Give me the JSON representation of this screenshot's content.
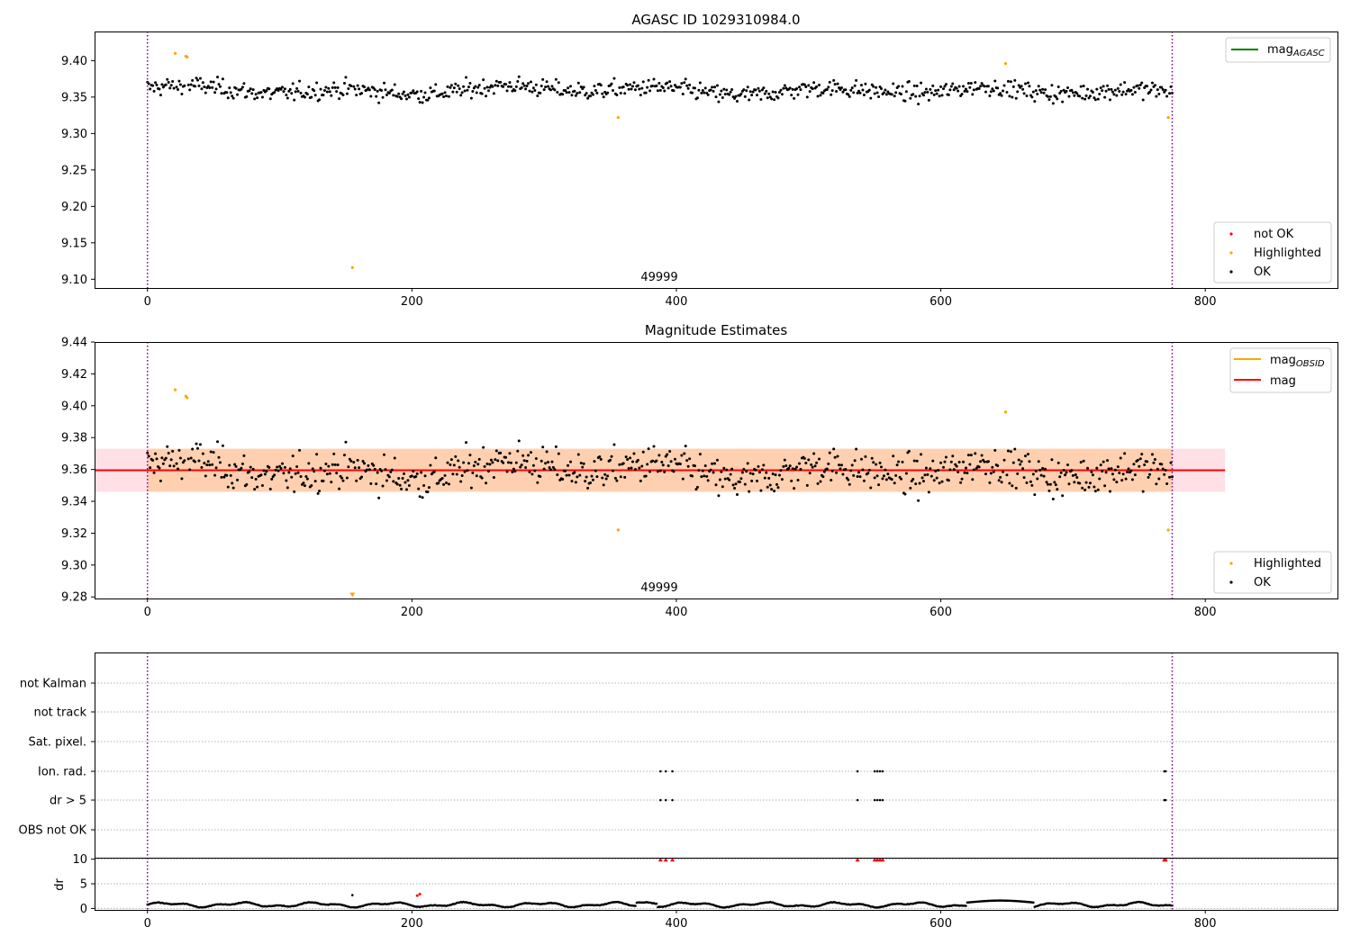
{
  "figure": {
    "panel1_title": "AGASC ID 1029310984.0",
    "panel2_title": "Magnitude Estimates",
    "obsid_label": "49999",
    "colors": {
      "ok": "#000000",
      "highlighted": "#ffa500",
      "not_ok": "#ff0000",
      "mag_line": "#ff0000",
      "mag_obsid": "#ffa500",
      "mag_agasc": "#008000",
      "band_inner": "#ffd0b0",
      "band_outer": "#ffe0e6",
      "obs_boundary": "#800080"
    }
  },
  "chart_data": [
    {
      "type": "scatter",
      "title": "AGASC ID 1029310984.0",
      "xlim": [
        -40,
        900
      ],
      "ylim": [
        9.088,
        9.44
      ],
      "xticks": [
        0,
        200,
        400,
        600,
        800
      ],
      "yticks": [
        9.1,
        9.15,
        9.2,
        9.25,
        9.3,
        9.35,
        9.4
      ],
      "ytick_labels": [
        "9.10",
        "9.15",
        "9.20",
        "9.25",
        "9.30",
        "9.35",
        "9.40"
      ],
      "observation_boundaries": [
        0,
        775
      ],
      "series": [
        {
          "name": "OK",
          "color": "#000000",
          "description": "~775 points scattered around 9.36 (range 9.325-9.395)"
        },
        {
          "name": "Highlighted",
          "color": "#ffa500",
          "x": [
            21,
            29,
            30,
            155,
            356,
            649,
            772
          ],
          "y": [
            9.41,
            9.406,
            9.405,
            9.116,
            9.322,
            9.396,
            9.322
          ]
        },
        {
          "name": "not OK",
          "color": "#ff0000",
          "x": [],
          "y": []
        }
      ],
      "lines": [
        {
          "name": "mag_AGASC",
          "color": "#008000"
        }
      ],
      "legend_lines": [
        {
          "label": "mag",
          "subscript": "AGASC",
          "color": "#008000"
        }
      ],
      "legend_points": [
        {
          "label": "not OK",
          "color": "#ff0000"
        },
        {
          "label": "Highlighted",
          "color": "#ffa500"
        },
        {
          "label": "OK",
          "color": "#000000"
        }
      ]
    },
    {
      "type": "scatter",
      "title": "Magnitude Estimates",
      "xlim": [
        -40,
        900
      ],
      "ylim": [
        9.279,
        9.44
      ],
      "xticks": [
        0,
        200,
        400,
        600,
        800
      ],
      "yticks": [
        9.28,
        9.3,
        9.32,
        9.34,
        9.36,
        9.38,
        9.4,
        9.42,
        9.44
      ],
      "ytick_labels": [
        "9.28",
        "9.30",
        "9.32",
        "9.34",
        "9.36",
        "9.38",
        "9.40",
        "9.42",
        "9.44"
      ],
      "observation_boundaries": [
        0,
        775
      ],
      "mag": 9.3595,
      "band_inner": [
        9.346,
        9.373
      ],
      "band_outer": [
        9.346,
        9.373
      ],
      "band_x": [
        -40,
        815
      ],
      "series": [
        {
          "name": "OK",
          "color": "#000000",
          "description": "~775 points scattered around 9.36 (range 9.325-9.395)"
        },
        {
          "name": "Highlighted",
          "color": "#ffa500",
          "x": [
            21,
            29,
            30,
            356,
            649,
            772
          ],
          "y": [
            9.41,
            9.406,
            9.405,
            9.322,
            9.396,
            9.322
          ]
        },
        {
          "name": "Highlighted (below axis)",
          "color": "#ffa500",
          "x": [
            155
          ],
          "y": [
            9.281
          ],
          "marker": "triangle-down"
        }
      ],
      "legend_lines": [
        {
          "label": "mag",
          "subscript": "OBSID",
          "color": "#ffa500"
        },
        {
          "label": "mag",
          "subscript": "",
          "color": "#ff0000"
        }
      ],
      "legend_points": [
        {
          "label": "Highlighted",
          "color": "#ffa500"
        },
        {
          "label": "OK",
          "color": "#000000"
        }
      ]
    },
    {
      "type": "scatter",
      "title": "",
      "xlim": [
        -40,
        900
      ],
      "categories": [
        "not Kalman",
        "not track",
        "Sat. pixel.",
        "Ion. rad.",
        "dr > 5",
        "OBS not OK"
      ],
      "flags": {
        "Ion. rad.": [
          388,
          392,
          397,
          537,
          550,
          552,
          554,
          556,
          769,
          770
        ],
        "dr > 5": [
          388,
          392,
          397,
          537,
          550,
          552,
          554,
          556,
          769,
          770
        ]
      },
      "observation_boundaries": [
        0,
        775
      ]
    },
    {
      "type": "scatter",
      "title": "",
      "ylabel": "dr",
      "xlim": [
        -40,
        900
      ],
      "ylim": [
        -0.3,
        10.3
      ],
      "xticks": [
        0,
        200,
        400,
        600,
        800
      ],
      "yticks": [
        0,
        5,
        10
      ],
      "ytick_labels": [
        "0",
        "5",
        "10"
      ],
      "clipped_at_10": [
        388,
        392,
        397,
        537,
        550,
        552,
        554,
        556,
        769,
        770
      ],
      "highlighted": [
        {
          "x": 204,
          "y": 2.6
        },
        {
          "x": 206,
          "y": 2.9
        }
      ],
      "spike": [
        {
          "x": 155,
          "y": 2.7
        }
      ],
      "baseline_description": "dr between ~0.2 and ~1.7, slowly oscillating",
      "observation_boundaries": [
        0,
        775
      ]
    }
  ]
}
